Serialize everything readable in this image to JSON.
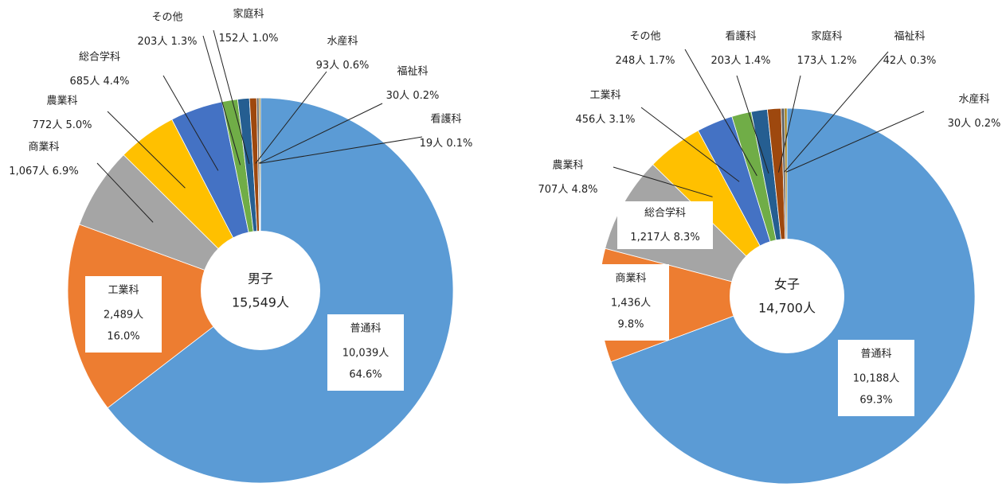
{
  "chart_data": [
    {
      "type": "pie",
      "center_title": "男子",
      "center_label": "15,549人",
      "categories": [
        "普通科",
        "工業科",
        "商業科",
        "農業科",
        "総合学科",
        "その他",
        "家庭科",
        "水産科",
        "福祉科",
        "看護科"
      ],
      "values": [
        10039,
        2489,
        1067,
        772,
        685,
        203,
        152,
        93,
        30,
        19
      ],
      "value_labels": [
        "10,039人",
        "2,489人",
        "1,067人",
        "772人",
        "685人",
        "203人",
        "152人",
        "93人",
        "30人",
        "19人"
      ],
      "percents": [
        64.6,
        16.0,
        6.9,
        5.0,
        4.4,
        1.3,
        1.0,
        0.6,
        0.2,
        0.1
      ],
      "percent_labels": [
        "64.6%",
        "16.0%",
        "6.9%",
        "5.0%",
        "4.4%",
        "1.3%",
        "1.0%",
        "0.6%",
        "0.2%",
        "0.1%"
      ],
      "colors": [
        "#5b9bd5",
        "#ed7d31",
        "#a5a5a5",
        "#ffc000",
        "#4472c4",
        "#70ad47",
        "#255e91",
        "#9e480e",
        "#636363",
        "#997300"
      ]
    },
    {
      "type": "pie",
      "center_title": "女子",
      "center_label": "14,700人",
      "categories": [
        "普通科",
        "商業科",
        "総合学科",
        "農業科",
        "工業科",
        "その他",
        "看護科",
        "家庭科",
        "福祉科",
        "水産科"
      ],
      "values": [
        10188,
        1436,
        1217,
        707,
        456,
        248,
        203,
        173,
        42,
        30
      ],
      "value_labels": [
        "10,188人",
        "1,436人",
        "1,217人",
        "707人",
        "456人",
        "248人",
        "203人",
        "173人",
        "42人",
        "30人"
      ],
      "percents": [
        69.3,
        9.8,
        8.3,
        4.8,
        3.1,
        1.7,
        1.4,
        1.2,
        0.3,
        0.2
      ],
      "percent_labels": [
        "69.3%",
        "9.8%",
        "8.3%",
        "4.8%",
        "3.1%",
        "1.7%",
        "1.4%",
        "1.2%",
        "0.3%",
        "0.2%"
      ],
      "colors": [
        "#5b9bd5",
        "#ed7d31",
        "#a5a5a5",
        "#ffc000",
        "#4472c4",
        "#70ad47",
        "#255e91",
        "#9e480e",
        "#636363",
        "#997300"
      ]
    }
  ]
}
